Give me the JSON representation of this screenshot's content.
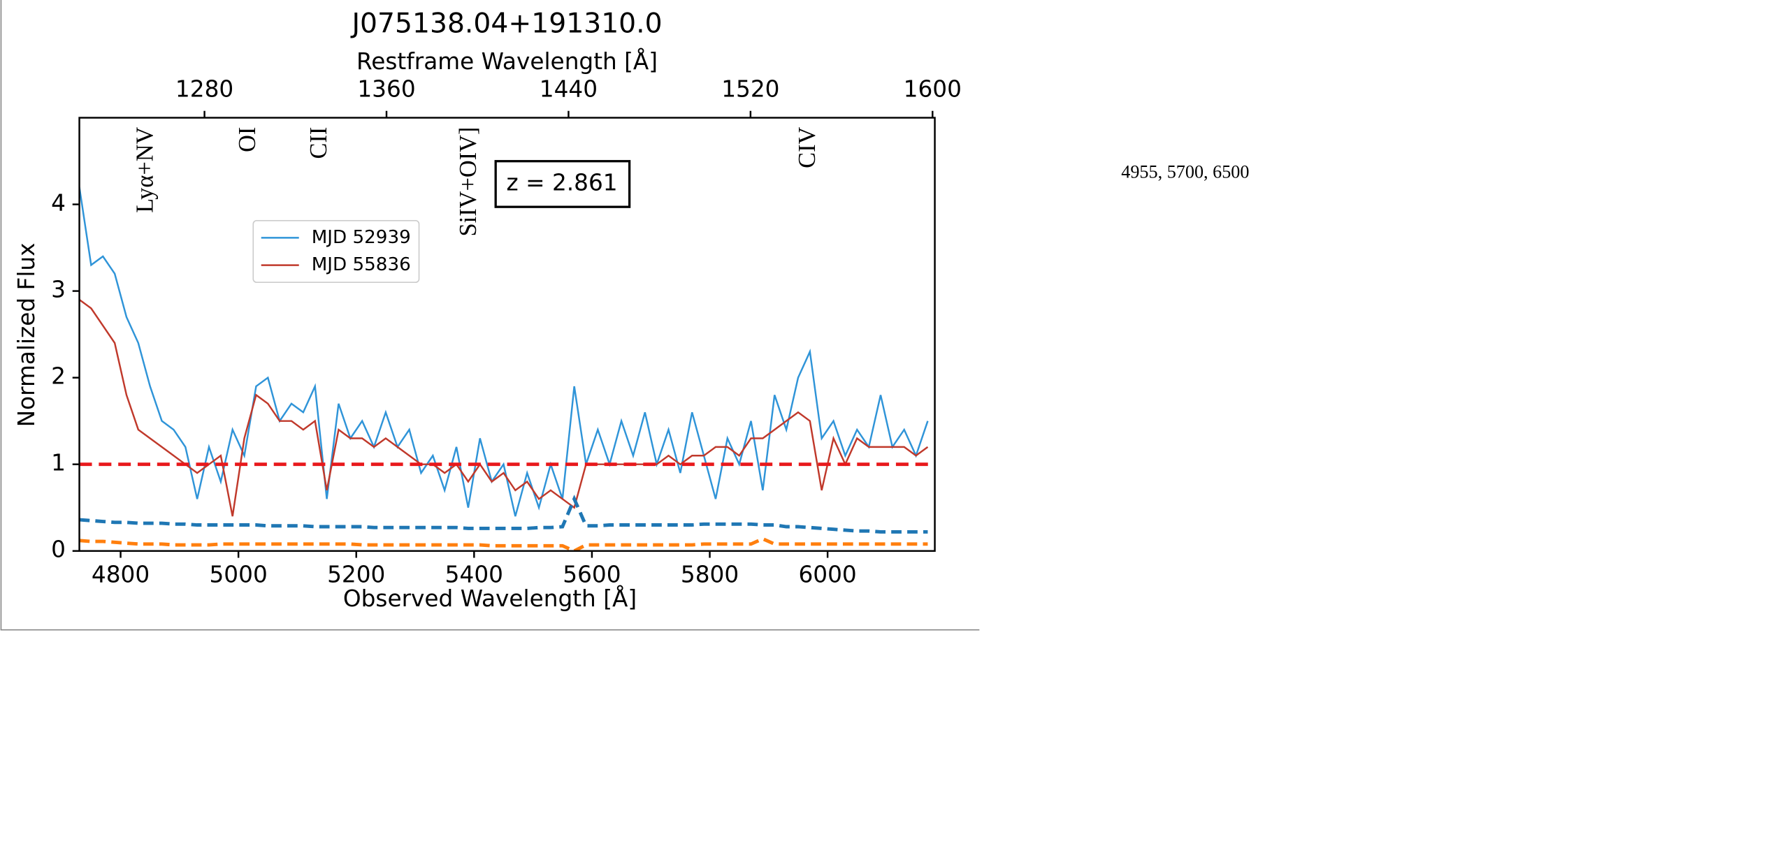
{
  "chart_data": {
    "type": "line",
    "title": "J075138.04+191310.0",
    "x_label": "Observed Wavelength [Å]",
    "x2_label": "Restframe Wavelength [Å]",
    "y_label": "Normalized Flux",
    "x": [
      4730,
      4750,
      4770,
      4790,
      4810,
      4830,
      4850,
      4870,
      4890,
      4910,
      4930,
      4950,
      4970,
      4990,
      5010,
      5030,
      5050,
      5070,
      5090,
      5110,
      5130,
      5150,
      5170,
      5190,
      5210,
      5230,
      5250,
      5270,
      5290,
      5310,
      5330,
      5350,
      5370,
      5390,
      5410,
      5430,
      5450,
      5470,
      5490,
      5510,
      5530,
      5550,
      5570,
      5590,
      5610,
      5630,
      5650,
      5670,
      5690,
      5710,
      5730,
      5750,
      5770,
      5790,
      5810,
      5830,
      5850,
      5870,
      5890,
      5910,
      5930,
      5950,
      5970,
      5990,
      6010,
      6030,
      6050,
      6070,
      6090,
      6110,
      6130,
      6150,
      6170
    ],
    "series": [
      {
        "name": "MJD 52939",
        "color": "#2f94d8",
        "dashed": false,
        "values": [
          4.2,
          3.3,
          3.4,
          3.2,
          2.7,
          2.4,
          1.9,
          1.5,
          1.4,
          1.2,
          0.6,
          1.2,
          0.8,
          1.4,
          1.1,
          1.9,
          2.0,
          1.5,
          1.7,
          1.6,
          1.9,
          0.6,
          1.7,
          1.3,
          1.5,
          1.2,
          1.6,
          1.2,
          1.4,
          0.9,
          1.1,
          0.7,
          1.2,
          0.5,
          1.3,
          0.8,
          1.0,
          0.4,
          0.9,
          0.5,
          1.0,
          0.6,
          1.9,
          1.0,
          1.4,
          1.0,
          1.5,
          1.1,
          1.6,
          1.0,
          1.4,
          0.9,
          1.6,
          1.1,
          0.6,
          1.3,
          1.0,
          1.5,
          0.7,
          1.8,
          1.4,
          2.0,
          2.3,
          1.3,
          1.5,
          1.1,
          1.4,
          1.2,
          1.8,
          1.2,
          1.4,
          1.1,
          1.5
        ]
      },
      {
        "name": "MJD 55836",
        "color": "#c0392b",
        "dashed": false,
        "values": [
          2.9,
          2.8,
          2.6,
          2.4,
          1.8,
          1.4,
          1.3,
          1.2,
          1.1,
          1.0,
          0.9,
          1.0,
          1.1,
          0.4,
          1.3,
          1.8,
          1.7,
          1.5,
          1.5,
          1.4,
          1.5,
          0.7,
          1.4,
          1.3,
          1.3,
          1.2,
          1.3,
          1.2,
          1.1,
          1.0,
          1.0,
          0.9,
          1.0,
          0.8,
          1.0,
          0.8,
          0.9,
          0.7,
          0.8,
          0.6,
          0.7,
          0.6,
          0.5,
          1.0,
          1.0,
          1.0,
          1.0,
          1.0,
          1.0,
          1.0,
          1.1,
          1.0,
          1.1,
          1.1,
          1.2,
          1.2,
          1.1,
          1.3,
          1.3,
          1.4,
          1.5,
          1.6,
          1.5,
          0.7,
          1.3,
          1.0,
          1.3,
          1.2,
          1.2,
          1.2,
          1.2,
          1.1,
          1.2
        ]
      },
      {
        "color": "#1f77b4",
        "dashed": true,
        "values": [
          0.36,
          0.35,
          0.34,
          0.33,
          0.33,
          0.32,
          0.32,
          0.32,
          0.31,
          0.31,
          0.3,
          0.3,
          0.3,
          0.3,
          0.3,
          0.3,
          0.29,
          0.29,
          0.29,
          0.29,
          0.28,
          0.28,
          0.28,
          0.28,
          0.28,
          0.27,
          0.27,
          0.27,
          0.27,
          0.27,
          0.27,
          0.27,
          0.27,
          0.26,
          0.26,
          0.26,
          0.26,
          0.26,
          0.26,
          0.27,
          0.27,
          0.28,
          0.6,
          0.29,
          0.29,
          0.3,
          0.3,
          0.3,
          0.3,
          0.3,
          0.3,
          0.3,
          0.3,
          0.31,
          0.31,
          0.31,
          0.31,
          0.31,
          0.3,
          0.3,
          0.28,
          0.28,
          0.27,
          0.26,
          0.25,
          0.24,
          0.23,
          0.23,
          0.22,
          0.22,
          0.22,
          0.22,
          0.22
        ]
      },
      {
        "color": "#ff7f0e",
        "dashed": true,
        "values": [
          0.12,
          0.11,
          0.11,
          0.1,
          0.09,
          0.08,
          0.08,
          0.08,
          0.07,
          0.07,
          0.07,
          0.07,
          0.08,
          0.08,
          0.08,
          0.08,
          0.08,
          0.08,
          0.08,
          0.08,
          0.08,
          0.08,
          0.08,
          0.08,
          0.07,
          0.07,
          0.07,
          0.07,
          0.07,
          0.07,
          0.07,
          0.07,
          0.07,
          0.07,
          0.07,
          0.06,
          0.06,
          0.06,
          0.06,
          0.06,
          0.06,
          0.06,
          0.0,
          0.07,
          0.07,
          0.07,
          0.07,
          0.07,
          0.07,
          0.07,
          0.07,
          0.07,
          0.07,
          0.08,
          0.08,
          0.08,
          0.08,
          0.08,
          0.14,
          0.08,
          0.08,
          0.08,
          0.08,
          0.08,
          0.08,
          0.08,
          0.08,
          0.08,
          0.08,
          0.08,
          0.08,
          0.08,
          0.08
        ]
      }
    ],
    "hline": {
      "value": 1,
      "color": "#e8191c"
    },
    "xlim": [
      4730,
      6182
    ],
    "xticks": [
      4800,
      5000,
      5200,
      5400,
      5600,
      5800,
      6000
    ],
    "x2lim": [
      1225,
      1601
    ],
    "x2ticks": [
      1280,
      1360,
      1440,
      1520,
      1600
    ],
    "ylim": [
      0,
      5
    ],
    "yticks": [
      0,
      1,
      2,
      3,
      4
    ],
    "annotations": [
      {
        "text": "Lyα+NV",
        "x": 4845
      },
      {
        "text": "OI",
        "x": 5019
      },
      {
        "text": "CII",
        "x": 5140
      },
      {
        "text": "SiIV+OIV]",
        "x": 5394
      },
      {
        "text": "CIV",
        "x": 5969
      }
    ],
    "redshift_label": "z = 2.861",
    "side_note": "4955, 5700, 6500"
  }
}
